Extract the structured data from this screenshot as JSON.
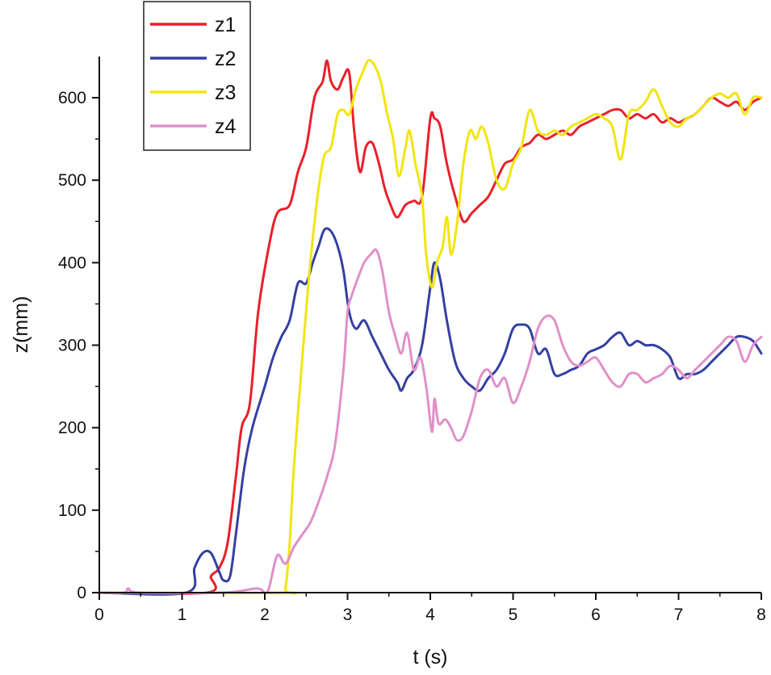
{
  "chart_data": {
    "type": "line",
    "title": "",
    "xlabel": "t (s)",
    "ylabel": "z(mm)",
    "xlim": [
      0,
      8
    ],
    "ylim": [
      0,
      650
    ],
    "xticks": [
      0,
      1,
      2,
      3,
      4,
      5,
      6,
      7,
      8
    ],
    "yticks": [
      0,
      100,
      200,
      300,
      400,
      500,
      600
    ],
    "grid": false,
    "legend": "top-left",
    "series": [
      {
        "name": "z1",
        "color": "#e8202a",
        "x": [
          0,
          1.3,
          1.35,
          1.45,
          1.55,
          1.65,
          1.72,
          1.82,
          1.92,
          2.05,
          2.15,
          2.3,
          2.4,
          2.5,
          2.6,
          2.7,
          2.75,
          2.8,
          2.88,
          2.95,
          3.02,
          3.08,
          3.15,
          3.22,
          3.3,
          3.38,
          3.45,
          3.52,
          3.6,
          3.7,
          3.8,
          3.9,
          4.0,
          4.05,
          4.12,
          4.2,
          4.3,
          4.4,
          4.5,
          4.6,
          4.7,
          4.8,
          4.9,
          5.0,
          5.1,
          5.2,
          5.3,
          5.4,
          5.5,
          5.6,
          5.7,
          5.8,
          5.9,
          6.0,
          6.1,
          6.2,
          6.3,
          6.4,
          6.5,
          6.6,
          6.7,
          6.8,
          6.9,
          7.0,
          7.1,
          7.2,
          7.3,
          7.4,
          7.5,
          7.6,
          7.7,
          7.8,
          7.9,
          8.0
        ],
        "y": [
          0,
          0,
          20,
          30,
          60,
          140,
          200,
          230,
          340,
          420,
          460,
          470,
          510,
          540,
          600,
          620,
          645,
          620,
          610,
          625,
          630,
          560,
          510,
          540,
          545,
          520,
          490,
          470,
          455,
          470,
          475,
          480,
          575,
          575,
          565,
          520,
          480,
          450,
          460,
          470,
          480,
          500,
          520,
          525,
          540,
          545,
          555,
          550,
          555,
          560,
          555,
          565,
          570,
          575,
          580,
          585,
          585,
          575,
          580,
          575,
          580,
          570,
          575,
          570,
          575,
          580,
          590,
          600,
          595,
          590,
          595,
          585,
          595,
          600
        ]
      },
      {
        "name": "z2",
        "color": "#3440a0",
        "x": [
          0,
          1.05,
          1.15,
          1.25,
          1.35,
          1.45,
          1.5,
          1.58,
          1.65,
          1.75,
          1.85,
          2.0,
          2.1,
          2.2,
          2.3,
          2.4,
          2.5,
          2.58,
          2.65,
          2.72,
          2.8,
          2.88,
          2.95,
          3.02,
          3.1,
          3.2,
          3.3,
          3.4,
          3.5,
          3.6,
          3.65,
          3.72,
          3.8,
          3.9,
          4.0,
          4.05,
          4.12,
          4.2,
          4.3,
          4.4,
          4.5,
          4.6,
          4.7,
          4.8,
          4.9,
          5.0,
          5.1,
          5.2,
          5.3,
          5.4,
          5.5,
          5.6,
          5.7,
          5.8,
          5.9,
          6.0,
          6.1,
          6.2,
          6.3,
          6.4,
          6.5,
          6.6,
          6.7,
          6.8,
          6.9,
          7.0,
          7.1,
          7.2,
          7.3,
          7.4,
          7.5,
          7.6,
          7.7,
          7.8,
          7.9,
          8.0
        ],
        "y": [
          0,
          0,
          30,
          48,
          48,
          25,
          15,
          20,
          70,
          150,
          200,
          250,
          285,
          310,
          330,
          375,
          375,
          400,
          420,
          440,
          438,
          420,
          390,
          340,
          320,
          330,
          310,
          290,
          270,
          255,
          245,
          260,
          270,
          300,
          370,
          400,
          380,
          330,
          280,
          260,
          250,
          245,
          260,
          270,
          290,
          320,
          325,
          320,
          290,
          295,
          265,
          265,
          270,
          275,
          290,
          295,
          300,
          310,
          315,
          300,
          305,
          300,
          300,
          295,
          285,
          260,
          265,
          265,
          270,
          280,
          290,
          300,
          310,
          310,
          305,
          290
        ]
      },
      {
        "name": "z3",
        "color": "#f2e510",
        "x": [
          0,
          2.2,
          2.25,
          2.3,
          2.35,
          2.45,
          2.55,
          2.65,
          2.72,
          2.8,
          2.88,
          2.95,
          3.02,
          3.1,
          3.18,
          3.25,
          3.32,
          3.4,
          3.48,
          3.55,
          3.62,
          3.7,
          3.75,
          3.82,
          3.9,
          3.95,
          4.02,
          4.08,
          4.15,
          4.2,
          4.25,
          4.32,
          4.4,
          4.48,
          4.55,
          4.62,
          4.7,
          4.8,
          4.9,
          5.0,
          5.1,
          5.2,
          5.3,
          5.4,
          5.5,
          5.6,
          5.7,
          5.8,
          5.9,
          6.0,
          6.1,
          6.2,
          6.3,
          6.4,
          6.5,
          6.6,
          6.7,
          6.8,
          6.9,
          7.0,
          7.1,
          7.2,
          7.3,
          7.4,
          7.5,
          7.6,
          7.7,
          7.8,
          7.9,
          8.0
        ],
        "y": [
          0,
          0,
          5,
          60,
          150,
          280,
          400,
          490,
          530,
          540,
          580,
          585,
          580,
          610,
          630,
          645,
          640,
          620,
          580,
          550,
          505,
          540,
          560,
          520,
          480,
          410,
          370,
          400,
          420,
          455,
          410,
          445,
          520,
          560,
          550,
          565,
          545,
          500,
          490,
          520,
          540,
          585,
          560,
          555,
          560,
          555,
          565,
          570,
          575,
          580,
          575,
          565,
          525,
          580,
          585,
          595,
          610,
          590,
          570,
          565,
          575,
          580,
          590,
          600,
          605,
          600,
          605,
          580,
          600,
          600
        ]
      },
      {
        "name": "z4",
        "color": "#e090c8",
        "x": [
          0,
          0.3,
          0.35,
          0.5,
          1.5,
          1.9,
          2.0,
          2.05,
          2.15,
          2.25,
          2.35,
          2.45,
          2.55,
          2.65,
          2.75,
          2.85,
          2.95,
          3.0,
          3.05,
          3.12,
          3.2,
          3.28,
          3.35,
          3.42,
          3.5,
          3.58,
          3.65,
          3.72,
          3.8,
          3.88,
          3.95,
          4.02,
          4.05,
          4.1,
          4.18,
          4.25,
          4.32,
          4.4,
          4.5,
          4.6,
          4.7,
          4.8,
          4.9,
          5.0,
          5.1,
          5.2,
          5.3,
          5.4,
          5.5,
          5.6,
          5.7,
          5.8,
          5.9,
          6.0,
          6.1,
          6.2,
          6.3,
          6.4,
          6.5,
          6.6,
          6.7,
          6.8,
          6.9,
          7.0,
          7.1,
          7.2,
          7.3,
          7.4,
          7.5,
          7.6,
          7.7,
          7.8,
          7.9,
          8.0
        ],
        "y": [
          0,
          0,
          5,
          0,
          0,
          5,
          0,
          5,
          45,
          35,
          55,
          70,
          85,
          110,
          140,
          180,
          270,
          340,
          360,
          380,
          400,
          410,
          415,
          390,
          340,
          310,
          290,
          315,
          270,
          285,
          250,
          195,
          235,
          205,
          210,
          200,
          185,
          190,
          220,
          260,
          270,
          250,
          260,
          230,
          250,
          280,
          320,
          335,
          330,
          300,
          280,
          275,
          280,
          285,
          270,
          255,
          250,
          265,
          265,
          255,
          260,
          265,
          275,
          270,
          260,
          270,
          280,
          290,
          300,
          310,
          305,
          280,
          300,
          310
        ]
      }
    ]
  }
}
